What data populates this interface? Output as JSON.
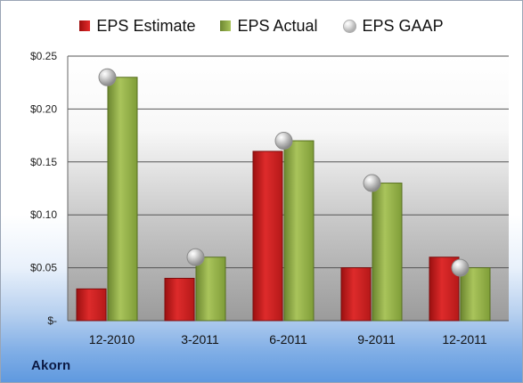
{
  "chart_data": {
    "type": "bar",
    "categories": [
      "12-2010",
      "3-2011",
      "6-2011",
      "9-2011",
      "12-2011"
    ],
    "series": [
      {
        "name": "EPS Estimate",
        "values": [
          0.03,
          0.04,
          0.16,
          0.05,
          0.06
        ],
        "color": "#d42323"
      },
      {
        "name": "EPS Actual",
        "values": [
          0.23,
          0.06,
          0.17,
          0.13,
          0.05
        ],
        "color": "#8fad45"
      },
      {
        "name": "EPS GAAP",
        "type": "scatter",
        "values": [
          0.23,
          0.06,
          0.17,
          0.13,
          0.05
        ],
        "color": "#b6b6b6"
      }
    ],
    "y_ticks": [
      "$-",
      "$0.05",
      "$0.10",
      "$0.15",
      "$0.20",
      "$0.25"
    ],
    "ylim": [
      0,
      0.25
    ],
    "grid": true,
    "legend": "top-center",
    "company": "Akorn"
  }
}
